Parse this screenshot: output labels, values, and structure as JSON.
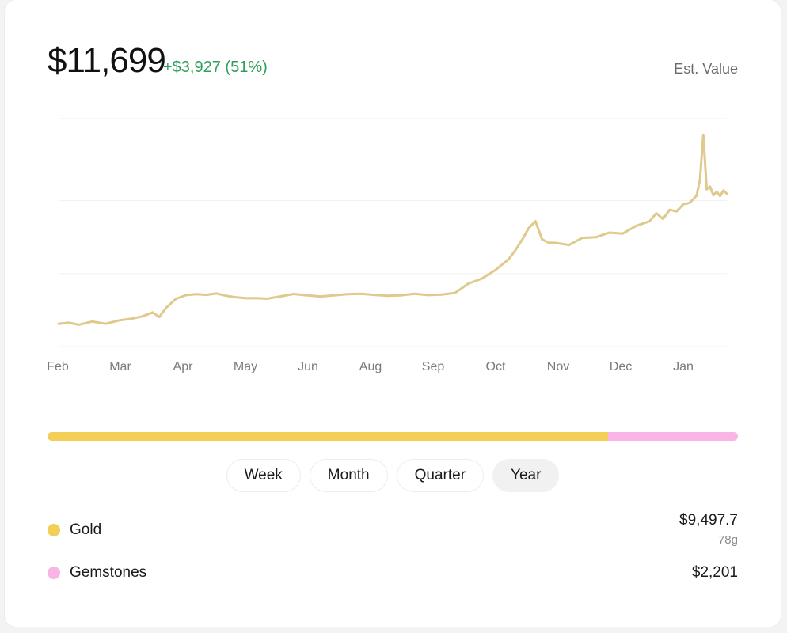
{
  "summary": {
    "total_value": "$11,699",
    "change": "+$3,927 (51%)",
    "label": "Est. Value"
  },
  "colors": {
    "line": "#e0c98d",
    "positive": "#2f9e5b",
    "gold": "#f3cf57",
    "gemstones": "#f8b5e5",
    "grid": "#f1f1f1"
  },
  "chart_data": {
    "type": "line",
    "x_ticks": [
      "Feb",
      "Mar",
      "Apr",
      "May",
      "Jun",
      "Aug",
      "Sep",
      "Oct",
      "Nov",
      "Dec",
      "Jan"
    ],
    "ylim": [
      0,
      100
    ],
    "grid": true,
    "series": [
      {
        "values": [
          [
            0,
            10
          ],
          [
            3,
            10.5
          ],
          [
            6,
            9.6
          ],
          [
            10,
            11
          ],
          [
            14,
            10
          ],
          [
            18,
            11.5
          ],
          [
            22,
            12.3
          ],
          [
            25,
            13.3
          ],
          [
            28,
            15
          ],
          [
            30,
            13
          ],
          [
            32,
            17
          ],
          [
            35,
            21
          ],
          [
            38,
            22.6
          ],
          [
            41,
            23
          ],
          [
            44,
            22.7
          ],
          [
            47,
            23.3
          ],
          [
            50,
            22.3
          ],
          [
            53,
            21.6
          ],
          [
            56,
            21.2
          ],
          [
            59,
            21.3
          ],
          [
            62,
            21
          ],
          [
            66,
            22
          ],
          [
            70,
            23.1
          ],
          [
            74,
            22.5
          ],
          [
            78,
            22
          ],
          [
            82,
            22.5
          ],
          [
            86,
            23
          ],
          [
            90,
            23.2
          ],
          [
            94,
            22.7
          ],
          [
            98,
            22.3
          ],
          [
            102,
            22.5
          ],
          [
            106,
            23.2
          ],
          [
            110,
            22.6
          ],
          [
            114,
            22.8
          ],
          [
            118,
            23.5
          ],
          [
            122,
            27.6
          ],
          [
            126,
            29.8
          ],
          [
            130,
            33.5
          ],
          [
            134,
            38.3
          ],
          [
            136,
            42.2
          ],
          [
            138,
            46.8
          ],
          [
            140,
            52
          ],
          [
            142,
            55
          ],
          [
            144,
            47
          ],
          [
            146,
            45.6
          ],
          [
            148,
            45.5
          ],
          [
            152,
            44.6
          ],
          [
            156,
            47.7
          ],
          [
            160,
            48
          ],
          [
            164,
            50
          ],
          [
            168,
            49.6
          ],
          [
            172,
            53
          ],
          [
            176,
            55
          ],
          [
            178,
            58.5
          ],
          [
            180,
            56
          ],
          [
            182,
            60
          ],
          [
            184,
            59.3
          ],
          [
            186,
            62.4
          ],
          [
            188,
            63.1
          ],
          [
            190,
            66.2
          ],
          [
            191,
            73.3
          ],
          [
            192,
            93
          ],
          [
            193,
            69
          ],
          [
            194,
            70.2
          ],
          [
            195,
            66.4
          ],
          [
            196,
            68
          ],
          [
            197,
            66
          ],
          [
            198,
            68.5
          ],
          [
            199,
            67.1
          ]
        ]
      }
    ]
  },
  "allocation": {
    "gold_fraction": 0.812
  },
  "ranges": {
    "week": "Week",
    "month": "Month",
    "quarter": "Quarter",
    "year": "Year",
    "selected": "Year"
  },
  "legend": {
    "gold": {
      "name": "Gold",
      "value": "$9,497.7",
      "sub": "78g"
    },
    "gemstones": {
      "name": "Gemstones",
      "value": "$2,201"
    }
  }
}
